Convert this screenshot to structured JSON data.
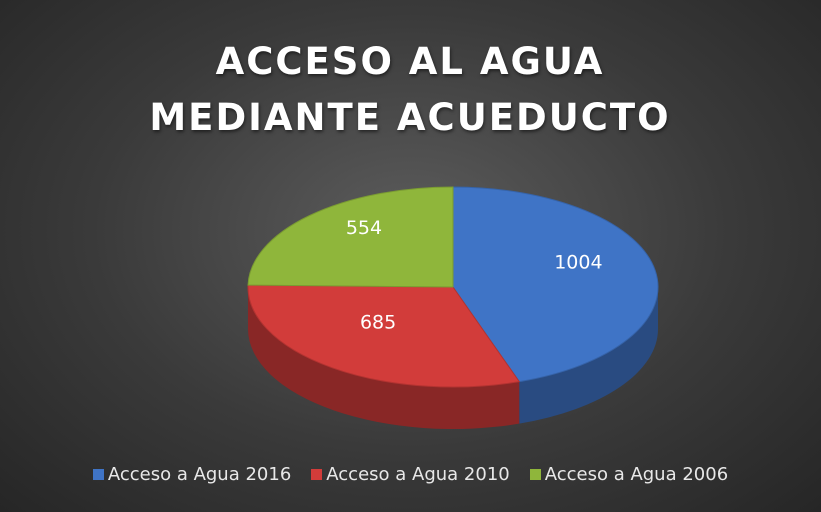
{
  "chart_data": {
    "type": "pie",
    "title": "ACCESO AL AGUA MEDIANTE ACUEDUCTO",
    "categories": [
      "Acceso a Agua 2016",
      "Acceso a Agua 2010",
      "Acceso a Agua 2006"
    ],
    "values": [
      1004,
      685,
      554
    ],
    "colors": [
      "#3f74c6",
      "#d23c3a",
      "#8fb63b"
    ],
    "legend": "bottom"
  }
}
